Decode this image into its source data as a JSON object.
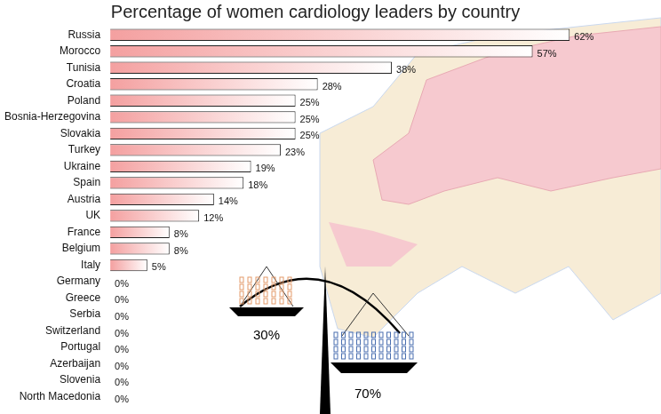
{
  "chart_data": {
    "type": "bar",
    "title": "Percentage of women cardiology leaders by country",
    "orientation": "horizontal",
    "categories": [
      "Russia",
      "Morocco",
      "Tunisia",
      "Croatia",
      "Poland",
      "Bosnia-Herzegovina",
      "Slovakia",
      "Turkey",
      "Ukraine",
      "Spain",
      "Austria",
      "UK",
      "France",
      "Belgium",
      "Italy",
      "Germany",
      "Greece",
      "Serbia",
      "Switzerland",
      "Portugal",
      "Azerbaijan",
      "Slovenia",
      "North Macedonia"
    ],
    "values": [
      62,
      57,
      38,
      28,
      25,
      25,
      25,
      23,
      19,
      18,
      14,
      12,
      8,
      8,
      5,
      0,
      0,
      0,
      0,
      0,
      0,
      0,
      0
    ],
    "value_labels": [
      "62%",
      "57%",
      "38%",
      "28%",
      "25%",
      "25%",
      "25%",
      "23%",
      "19%",
      "18%",
      "14%",
      "12%",
      "8%",
      "8%",
      "5%",
      "0%",
      "0%",
      "0%",
      "0%",
      "0%",
      "0%",
      "0%",
      "0%"
    ],
    "data_labels": true,
    "color": "#f4a0a0",
    "grid": false,
    "tick_labels": "y",
    "annotations": [
      "30%",
      "70%"
    ]
  }
}
